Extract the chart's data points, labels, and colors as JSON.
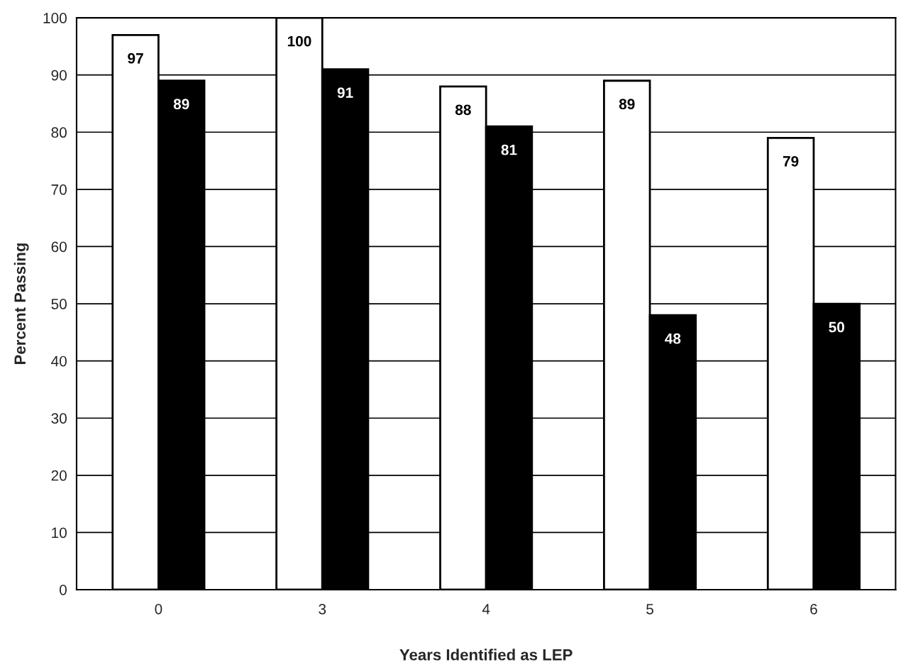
{
  "chart_data": {
    "type": "bar",
    "xlabel": "Years Identified as LEP",
    "ylabel": "Percent Passing",
    "categories": [
      "0",
      "3",
      "4",
      "5",
      "6"
    ],
    "series": [
      {
        "color": "#ffffff",
        "values": [
          97,
          100,
          88,
          89,
          79
        ]
      },
      {
        "color": "#000000",
        "values": [
          89,
          91,
          81,
          48,
          50
        ]
      }
    ],
    "ylim": [
      0,
      100
    ],
    "yticks": [
      0,
      10,
      20,
      30,
      40,
      50,
      60,
      70,
      80,
      90,
      100
    ],
    "grid": "y",
    "data_labels": true
  }
}
